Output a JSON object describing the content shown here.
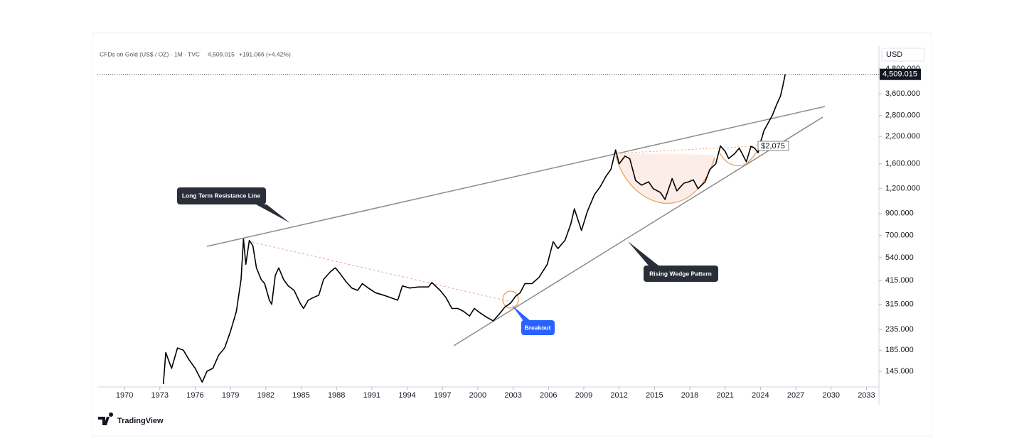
{
  "chart_data": {
    "type": "line",
    "symbol": "CFDs on Gold (US$ / OZ) · 1M · TVC",
    "last_label": "4,509.015",
    "change_label": "+191.066 (+4.42%)",
    "currency": "USD",
    "brand": "TradingView",
    "log_scale": true,
    "ylim": [
      121,
      6250
    ],
    "yticks": [
      {
        "value": 145,
        "label": "145.000"
      },
      {
        "value": 185,
        "label": "185.000"
      },
      {
        "value": 235,
        "label": "235.000"
      },
      {
        "value": 315,
        "label": "315.000"
      },
      {
        "value": 415,
        "label": "415.000"
      },
      {
        "value": 540,
        "label": "540.000"
      },
      {
        "value": 700,
        "label": "700.000"
      },
      {
        "value": 900,
        "label": "900.000"
      },
      {
        "value": 1200,
        "label": "1,200.000"
      },
      {
        "value": 1600,
        "label": "1,600.000"
      },
      {
        "value": 2200,
        "label": "2,200.000"
      },
      {
        "value": 2800,
        "label": "2,800.000"
      },
      {
        "value": 3600,
        "label": "3,600.000"
      },
      {
        "value": 4800,
        "label": "4,800.000"
      }
    ],
    "xlim": [
      1967.7,
      2034
    ],
    "xticks": [
      1970,
      1973,
      1976,
      1979,
      1982,
      1985,
      1988,
      1991,
      1994,
      1997,
      2000,
      2003,
      2006,
      2009,
      2012,
      2015,
      2018,
      2021,
      2024,
      2027,
      2030,
      2033
    ],
    "annotations": {
      "resistance": "Long Term Resistance Line",
      "wedge": "Rising Wedge Pattern",
      "breakout": "Breakout",
      "level": "$2,075"
    },
    "series": [
      {
        "color": "#000000",
        "x": [
          1973.3,
          1973.5,
          1974.0,
          1974.5,
          1975.0,
          1975.5,
          1976.0,
          1976.6,
          1977.0,
          1977.5,
          1978.0,
          1978.5,
          1979.0,
          1979.5,
          1979.9,
          1980.1,
          1980.3,
          1980.6,
          1980.9,
          1981.2,
          1981.6,
          1981.9,
          1982.3,
          1982.5,
          1982.8,
          1983.1,
          1983.5,
          1983.9,
          1984.4,
          1984.9,
          1985.2,
          1985.6,
          1986.0,
          1986.5,
          1986.9,
          1987.5,
          1987.9,
          1988.3,
          1988.8,
          1989.3,
          1989.8,
          1990.2,
          1990.7,
          1991.3,
          1992.0,
          1992.6,
          1993.2,
          1993.6,
          1994.2,
          1995.0,
          1995.8,
          1996.1,
          1996.8,
          1997.3,
          1997.8,
          1998.3,
          1998.8,
          1999.3,
          1999.7,
          2000.2,
          2000.8,
          2001.3,
          2001.8,
          2002.3,
          2002.8,
          2003.2,
          2003.6,
          2004.0,
          2004.6,
          2005.2,
          2005.9,
          2006.4,
          2006.8,
          2007.4,
          2007.9,
          2008.2,
          2008.8,
          2009.3,
          2009.9,
          2010.4,
          2010.9,
          2011.3,
          2011.7,
          2012.0,
          2012.5,
          2012.9,
          2013.4,
          2013.9,
          2014.5,
          2014.9,
          2015.5,
          2015.9,
          2016.5,
          2016.9,
          2017.5,
          2017.9,
          2018.3,
          2018.7,
          2019.3,
          2019.7,
          2020.2,
          2020.6,
          2021.0,
          2021.3,
          2021.8,
          2022.2,
          2022.8,
          2023.2,
          2023.5,
          2023.8,
          2024.0,
          2024.3,
          2024.7,
          2025.0,
          2025.3,
          2025.5,
          2025.7,
          2025.9,
          2026.1
        ],
        "values": [
          125,
          180,
          150,
          190,
          185,
          165,
          150,
          128,
          145,
          150,
          175,
          190,
          230,
          290,
          420,
          670,
          500,
          660,
          620,
          480,
          420,
          400,
          330,
          315,
          440,
          480,
          420,
          390,
          370,
          320,
          300,
          330,
          340,
          350,
          420,
          460,
          480,
          450,
          410,
          380,
          370,
          400,
          380,
          360,
          350,
          340,
          330,
          390,
          380,
          385,
          385,
          405,
          370,
          340,
          300,
          300,
          290,
          275,
          300,
          285,
          270,
          260,
          280,
          305,
          320,
          345,
          360,
          400,
          400,
          430,
          500,
          650,
          600,
          660,
          800,
          950,
          740,
          920,
          1120,
          1230,
          1390,
          1500,
          1880,
          1600,
          1750,
          1700,
          1320,
          1250,
          1300,
          1200,
          1150,
          1060,
          1350,
          1170,
          1280,
          1300,
          1330,
          1200,
          1300,
          1500,
          1600,
          1970,
          1850,
          1700,
          1800,
          1920,
          1640,
          1960,
          1920,
          1820,
          2050,
          2350,
          2600,
          2800,
          3100,
          3300,
          3500,
          3950,
          4509.015
        ]
      }
    ]
  }
}
